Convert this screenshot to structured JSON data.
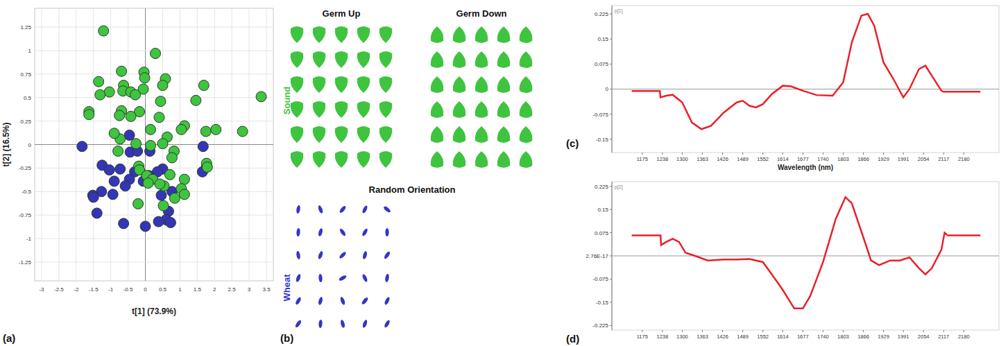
{
  "chart_data": [
    {
      "type": "scatter",
      "panel_label": "(a)",
      "x_label": "t[1] (73.9%)",
      "y_label": "t[2] (16.5%)",
      "xlim": [
        -3.2,
        3.7
      ],
      "ylim": [
        -1.45,
        1.45
      ],
      "xticks": [
        -3,
        -2.5,
        -2,
        -1.5,
        -1,
        -0.5,
        0,
        0.5,
        1,
        1.5,
        2,
        2.5,
        3,
        3.5
      ],
      "yticks": [
        -1.25,
        -1,
        -0.75,
        -0.5,
        -0.25,
        0,
        0.25,
        0.5,
        0.75,
        1,
        1.25
      ],
      "grid": true,
      "series": [
        {
          "color": "#3fc43f",
          "marker": "circle",
          "x": [
            -1.21,
            0.29,
            -0.69,
            -0.04,
            -0.02,
            0.58,
            -1.35,
            -0.63,
            -0.65,
            -1.04,
            -0.42,
            0.5,
            -0.06,
            1.69,
            -1.31,
            -0.29,
            0.44,
            1.46,
            -0.69,
            -1.63,
            -0.17,
            -1.63,
            -0.75,
            -0.42,
            0.4,
            1.13,
            1.04,
            0.15,
            0.63,
            -0.73,
            1.75,
            3.35,
            2.81,
            2.04,
            -0.27,
            0.5,
            0.15,
            -0.9,
            -0.79,
            0.83,
            -0.19,
            -0.17,
            0.77,
            1.77,
            1.79,
            0.04,
            0.21,
            0.08,
            0.54,
            0.42,
            1.13,
            1.04,
            0.85,
            0.52,
            -0.21,
            1.13,
            0.71
          ],
          "values": [
            1.21,
            0.97,
            0.78,
            0.77,
            0.71,
            0.7,
            0.67,
            0.63,
            0.57,
            0.56,
            0.56,
            0.63,
            0.59,
            0.63,
            0.53,
            0.53,
            0.46,
            0.47,
            0.36,
            0.35,
            0.35,
            0.32,
            0.31,
            0.3,
            0.29,
            0.2,
            0.16,
            0.16,
            0.08,
            0.06,
            0.14,
            0.51,
            0.14,
            0.16,
            0.01,
            0.01,
            -0.01,
            0.12,
            -0.07,
            -0.07,
            -0.23,
            -0.27,
            -0.14,
            -0.2,
            -0.24,
            -0.33,
            -0.37,
            -0.41,
            -0.44,
            -0.42,
            -0.37,
            -0.47,
            -0.57,
            -0.65,
            -0.63,
            -0.53,
            -0.32
          ]
        },
        {
          "color": "#3535b8",
          "marker": "circle",
          "x": [
            -1.83,
            -0.46,
            -0.44,
            -0.23,
            0.13,
            -1.25,
            -1.04,
            -0.73,
            -0.31,
            -0.46,
            0.1,
            -0.06,
            0.5,
            0.35,
            1.67,
            1.77,
            1.65,
            -0.58,
            -1.27,
            -0.9,
            -0.94,
            -1.52,
            -1.5,
            0.46,
            0.77,
            0.67,
            0.6,
            0.38,
            -0.63,
            -1.4,
            0,
            0.73
          ],
          "values": [
            -0.02,
            0.1,
            -0.08,
            -0.07,
            -0.07,
            -0.22,
            -0.27,
            -0.26,
            -0.29,
            -0.37,
            -0.33,
            -0.39,
            -0.26,
            -0.29,
            -0.02,
            -0.23,
            -0.29,
            -0.44,
            -0.5,
            -0.39,
            -0.53,
            -0.54,
            -0.56,
            -0.54,
            -0.5,
            -0.71,
            -0.8,
            -0.82,
            -0.84,
            -0.73,
            -0.87,
            -0.83
          ]
        }
      ]
    },
    {
      "type": "line",
      "panel_label": "(c)",
      "y_label": "p[1]",
      "x_label": "Wavelength (nm)",
      "xlim": [
        1080,
        2290
      ],
      "ylim": [
        -0.19,
        0.25
      ],
      "xticks": [
        1175,
        1238,
        1300,
        1363,
        1426,
        1489,
        1552,
        1614,
        1677,
        1740,
        1803,
        1866,
        1929,
        1991,
        2054,
        2117,
        2180
      ],
      "yticks": [
        -0.15,
        -0.075,
        0,
        0.075,
        0.15,
        0.225
      ],
      "grid": false,
      "x": [
        1142,
        1230,
        1232,
        1250,
        1270,
        1300,
        1330,
        1360,
        1390,
        1430,
        1470,
        1489,
        1510,
        1530,
        1552,
        1580,
        1614,
        1640,
        1677,
        1720,
        1770,
        1803,
        1830,
        1860,
        1880,
        1900,
        1929,
        1960,
        1991,
        2010,
        2040,
        2060,
        2080,
        2110,
        2117,
        2232
      ],
      "series": [
        {
          "color": "#e8202a",
          "line_style": "solid",
          "values": [
            -0.006,
            -0.006,
            -0.025,
            -0.02,
            -0.017,
            -0.04,
            -0.1,
            -0.12,
            -0.11,
            -0.07,
            -0.04,
            -0.035,
            -0.05,
            -0.055,
            -0.045,
            -0.015,
            0.01,
            0.008,
            -0.005,
            -0.018,
            -0.02,
            0.02,
            0.14,
            0.22,
            0.225,
            0.19,
            0.08,
            0.03,
            -0.025,
            0,
            0.06,
            0.07,
            0.04,
            -0.005,
            -0.008,
            -0.008
          ]
        }
      ]
    },
    {
      "type": "line",
      "panel_label": "(d)",
      "y_label": "p[2]",
      "xlim": [
        1080,
        2290
      ],
      "ylim": [
        -0.24,
        0.24
      ],
      "xticks": [
        1175,
        1238,
        1300,
        1363,
        1426,
        1489,
        1552,
        1614,
        1677,
        1740,
        1803,
        1866,
        1929,
        1991,
        2054,
        2117,
        2180
      ],
      "yticks": [
        -0.225,
        -0.15,
        -0.075,
        {
          "value": 0,
          "label": "2.76E-17"
        },
        0.075,
        0.15,
        0.225
      ],
      "grid": false,
      "x": [
        1142,
        1232,
        1234,
        1250,
        1270,
        1290,
        1310,
        1340,
        1380,
        1430,
        1470,
        1510,
        1552,
        1580,
        1614,
        1650,
        1677,
        1700,
        1740,
        1780,
        1810,
        1830,
        1866,
        1890,
        1915,
        1950,
        1980,
        2010,
        2040,
        2060,
        2080,
        2110,
        2120,
        2130,
        2232
      ],
      "series": [
        {
          "color": "#e8202a",
          "line_style": "solid",
          "values": [
            0.066,
            0.066,
            0.035,
            0.045,
            0.055,
            0.045,
            0.01,
            0,
            -0.015,
            -0.012,
            -0.012,
            -0.01,
            -0.02,
            -0.06,
            -0.11,
            -0.17,
            -0.17,
            -0.13,
            -0.02,
            0.12,
            0.19,
            0.17,
            0.06,
            -0.015,
            -0.03,
            -0.015,
            -0.015,
            -0.005,
            -0.04,
            -0.06,
            -0.04,
            0.02,
            0.075,
            0.066,
            0.066
          ]
        }
      ]
    }
  ],
  "diagram": {
    "panel_label": "(b)",
    "columns": [
      "Germ Up",
      "Germ Down"
    ],
    "random_label": "Random Orientation",
    "rows": [
      {
        "label": "Sound",
        "color": "#3fc43f"
      },
      {
        "label": "Wheat",
        "color": "#3535c8"
      }
    ]
  }
}
